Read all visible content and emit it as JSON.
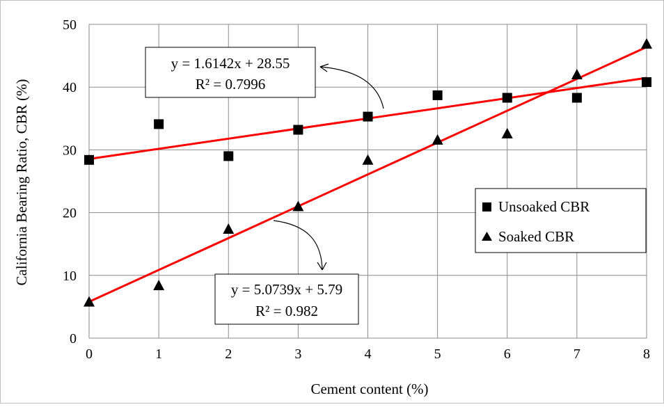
{
  "chart_data": {
    "type": "scatter",
    "xlabel": "Cement content (%)",
    "ylabel": "California Bearing Ratio, CBR  (%)",
    "xlim": [
      0,
      8
    ],
    "ylim": [
      0,
      50
    ],
    "xticks": [
      "0",
      "1",
      "2",
      "3",
      "4",
      "5",
      "6",
      "7",
      "8"
    ],
    "yticks": [
      "0",
      "10",
      "20",
      "30",
      "40",
      "50"
    ],
    "grid": true,
    "legend_position": "right",
    "series": [
      {
        "name": "Unsoaked CBR",
        "marker": "square",
        "color": "#000000",
        "x": [
          0,
          1,
          2,
          3,
          4,
          5,
          6,
          7,
          8
        ],
        "y": [
          28.4,
          34.1,
          29.0,
          33.2,
          35.3,
          38.7,
          38.3,
          38.3,
          40.8
        ],
        "trendline": {
          "slope": 1.6142,
          "intercept": 28.55,
          "color": "#ff0000",
          "equation": "y = 1.6142x + 28.55",
          "r2": "R² = 0.7996"
        }
      },
      {
        "name": "Soaked CBR",
        "marker": "triangle",
        "color": "#000000",
        "x": [
          0,
          1,
          2,
          3,
          4,
          5,
          6,
          7,
          8
        ],
        "y": [
          5.7,
          8.3,
          17.3,
          20.9,
          28.3,
          31.5,
          32.5,
          41.9,
          46.8
        ],
        "trendline": {
          "slope": 5.0739,
          "intercept": 5.79,
          "color": "#ff0000",
          "equation": "y = 5.0739x + 5.79",
          "r2": "R² = 0.982"
        }
      }
    ]
  }
}
